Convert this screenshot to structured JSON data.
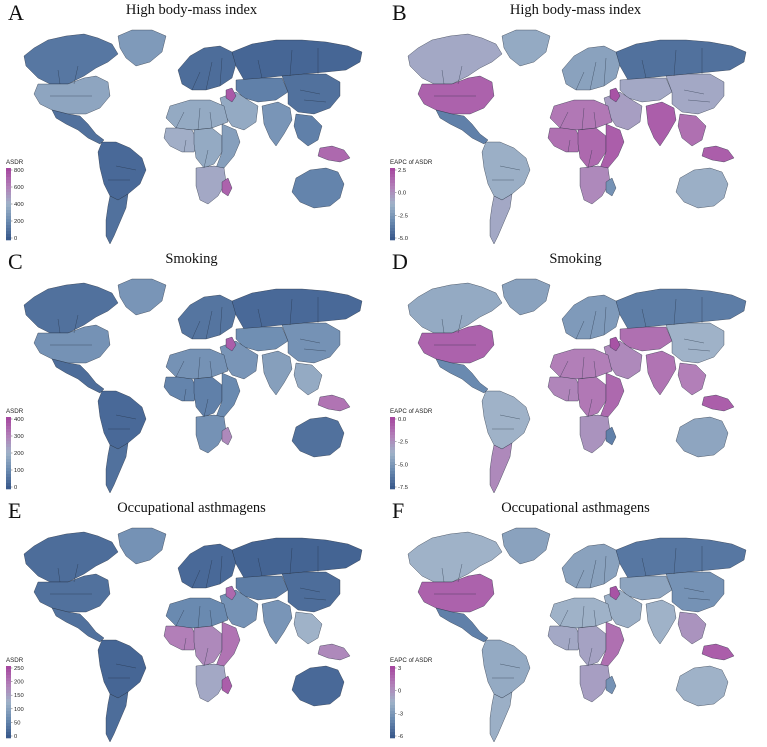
{
  "palette": {
    "low": "#3a5a8c",
    "midlow": "#6a8ab0",
    "mid": "#9fb2c8",
    "midhigh": "#b27fb8",
    "high": "#a648a0",
    "border": "#1f2a3a"
  },
  "panels": [
    {
      "letter": "A",
      "title": "High body-mass index",
      "legend": {
        "title": "ASDR",
        "ticks": [
          "800",
          "600",
          "400",
          "200",
          "0"
        ]
      },
      "regions": {
        "na_north": 0.15,
        "greenland": 0.35,
        "usa": 0.42,
        "mexico_ca": 0.12,
        "south_america": 0.08,
        "south_america_south": 0.12,
        "europe": 0.1,
        "russia": 0.06,
        "central_asia": 0.2,
        "middle_east": 0.45,
        "north_africa": 0.45,
        "africa_west": 0.52,
        "africa_central": 0.45,
        "africa_east": 0.38,
        "africa_south": 0.55,
        "india": 0.32,
        "china": 0.12,
        "se_asia": 0.2,
        "islands": 0.85,
        "australia": 0.22,
        "hotspot_a": 0.92,
        "hotspot_b": 0.88
      }
    },
    {
      "letter": "B",
      "title": "High body-mass index",
      "legend": {
        "title": "EAPC of ASDR",
        "ticks": [
          "2.5",
          "0.0",
          "-2.5",
          "-5.0"
        ]
      },
      "regions": {
        "na_north": 0.55,
        "greenland": 0.45,
        "usa": 0.88,
        "mexico_ca": 0.2,
        "south_america": 0.48,
        "south_america_south": 0.55,
        "europe": 0.4,
        "russia": 0.12,
        "central_asia": 0.55,
        "middle_east": 0.6,
        "north_africa": 0.78,
        "africa_west": 0.82,
        "africa_central": 0.85,
        "africa_east": 0.9,
        "africa_south": 0.7,
        "india": 0.9,
        "china": 0.55,
        "se_asia": 0.82,
        "islands": 0.9,
        "australia": 0.48,
        "hotspot_a": 0.95,
        "hotspot_b": 0.3
      }
    },
    {
      "letter": "C",
      "title": "Smoking",
      "legend": {
        "title": "ASDR",
        "ticks": [
          "400",
          "300",
          "200",
          "100",
          "0"
        ]
      },
      "regions": {
        "na_north": 0.12,
        "greenland": 0.32,
        "usa": 0.3,
        "mexico_ca": 0.1,
        "south_america": 0.08,
        "south_america_south": 0.12,
        "europe": 0.14,
        "russia": 0.08,
        "central_asia": 0.28,
        "middle_east": 0.32,
        "north_africa": 0.3,
        "africa_west": 0.22,
        "africa_central": 0.2,
        "africa_east": 0.25,
        "africa_south": 0.3,
        "india": 0.38,
        "china": 0.3,
        "se_asia": 0.45,
        "islands": 0.8,
        "australia": 0.12,
        "hotspot_a": 0.9,
        "hotspot_b": 0.7
      }
    },
    {
      "letter": "D",
      "title": "Smoking",
      "legend": {
        "title": "EAPC of ASDR",
        "ticks": [
          "0.0",
          "-2.5",
          "-5.0",
          "-7.5"
        ]
      },
      "regions": {
        "na_north": 0.45,
        "greenland": 0.4,
        "usa": 0.88,
        "mexico_ca": 0.25,
        "south_america": 0.5,
        "south_america_south": 0.7,
        "europe": 0.35,
        "russia": 0.18,
        "central_asia": 0.82,
        "middle_east": 0.7,
        "north_africa": 0.75,
        "africa_west": 0.72,
        "africa_central": 0.78,
        "africa_east": 0.85,
        "africa_south": 0.65,
        "india": 0.8,
        "china": 0.5,
        "se_asia": 0.75,
        "islands": 0.9,
        "australia": 0.42,
        "hotspot_a": 0.95,
        "hotspot_b": 0.2
      }
    },
    {
      "letter": "E",
      "title": "Occupational asthmagens",
      "legend": {
        "title": "ASDR",
        "ticks": [
          "250",
          "200",
          "150",
          "100",
          "50",
          "0"
        ]
      },
      "regions": {
        "na_north": 0.1,
        "greenland": 0.3,
        "usa": 0.12,
        "mexico_ca": 0.12,
        "south_america": 0.06,
        "south_america_south": 0.1,
        "europe": 0.08,
        "russia": 0.05,
        "central_asia": 0.18,
        "middle_east": 0.3,
        "north_africa": 0.25,
        "africa_west": 0.75,
        "africa_central": 0.7,
        "africa_east": 0.8,
        "africa_south": 0.55,
        "india": 0.32,
        "china": 0.1,
        "se_asia": 0.5,
        "islands": 0.7,
        "australia": 0.08,
        "hotspot_a": 0.85,
        "hotspot_b": 0.9
      }
    },
    {
      "letter": "F",
      "title": "Occupational asthmagens",
      "legend": {
        "title": "EAPC of ASDR",
        "ticks": [
          "3",
          "0",
          "-3",
          "-6"
        ]
      },
      "regions": {
        "na_north": 0.5,
        "greenland": 0.4,
        "usa": 0.88,
        "mexico_ca": 0.2,
        "south_america": 0.45,
        "south_america_south": 0.48,
        "europe": 0.4,
        "russia": 0.15,
        "central_asia": 0.42,
        "middle_east": 0.48,
        "north_africa": 0.5,
        "africa_west": 0.55,
        "africa_central": 0.58,
        "africa_east": 0.82,
        "africa_south": 0.6,
        "india": 0.5,
        "china": 0.3,
        "se_asia": 0.65,
        "islands": 0.9,
        "australia": 0.5,
        "hotspot_a": 0.95,
        "hotspot_b": 0.3
      }
    }
  ]
}
